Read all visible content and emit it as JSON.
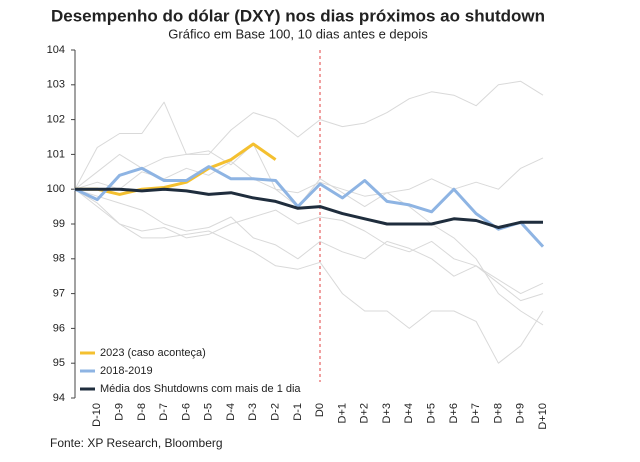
{
  "chart_data": {
    "type": "line",
    "title": "Desempenho do dólar (DXY) nos dias próximos ao shutdown",
    "subtitle": "Gráfico em Base 100, 10 dias antes e depois",
    "source": "Fonte: XP Research, Bloomberg",
    "categories": [
      null,
      "D-10",
      "D-9",
      "D-8",
      "D-7",
      "D-6",
      "D-5",
      "D-4",
      "D-3",
      "D-2",
      "D-1",
      "D0",
      "D+1",
      "D+2",
      "D+3",
      "D+4",
      "D+5",
      "D+6",
      "D+7",
      "D+8",
      "D+9",
      "D+10"
    ],
    "ylim": [
      94,
      104
    ],
    "yticks": [
      94,
      95,
      96,
      97,
      98,
      99,
      100,
      101,
      102,
      103,
      104
    ],
    "series": [
      {
        "color": "#d9d9d9",
        "values": [
          100,
          101.2,
          101.6,
          101.6,
          102.5,
          101.0,
          101.0,
          101.7,
          102.2,
          102.0,
          101.5,
          102.0,
          101.8,
          101.9,
          102.2,
          102.6,
          102.8,
          102.7,
          102.4,
          103.0,
          103.1,
          102.7
        ]
      },
      {
        "color": "#d9d9d9",
        "values": [
          100,
          100.5,
          101.0,
          100.6,
          100.9,
          101.0,
          101.1,
          100.7,
          101.3,
          100.0,
          99.5,
          100.3,
          99.9,
          99.5,
          99.9,
          99.5,
          99.0,
          98.6,
          98.0,
          97.0,
          96.5,
          96.1
        ]
      },
      {
        "color": "#d9d9d9",
        "values": [
          100,
          99.5,
          99.0,
          98.6,
          98.6,
          98.7,
          98.8,
          98.5,
          98.2,
          97.8,
          97.7,
          97.9,
          97.0,
          96.5,
          96.5,
          96.0,
          96.5,
          96.5,
          96.2,
          95.0,
          95.5,
          96.5
        ]
      },
      {
        "color": "#d9d9d9",
        "values": [
          100,
          99.8,
          99.6,
          99.4,
          99.0,
          98.8,
          98.9,
          99.2,
          98.6,
          98.4,
          98.0,
          98.5,
          98.2,
          98.0,
          98.5,
          98.3,
          98.0,
          97.5,
          97.8,
          97.4,
          97.0,
          97.3
        ]
      },
      {
        "color": "#d9d9d9",
        "values": [
          100,
          100.2,
          100.0,
          100.5,
          100.3,
          100.6,
          100.4,
          100.8,
          100.3,
          100.0,
          99.9,
          100.2,
          100.0,
          99.8,
          99.9,
          100.0,
          100.3,
          100.0,
          100.2,
          100.0,
          100.6,
          100.9
        ]
      },
      {
        "color": "#d9d9d9",
        "values": [
          100,
          99.6,
          99.0,
          98.8,
          98.9,
          98.6,
          98.7,
          99.0,
          99.2,
          99.4,
          99.0,
          99.2,
          99.1,
          98.8,
          98.4,
          98.2,
          98.5,
          98.0,
          97.8,
          97.3,
          96.8,
          97.0
        ]
      },
      {
        "name": "2023 (caso aconteça)",
        "color": "#f4c030",
        "values": [
          100,
          100.0,
          99.85,
          100.0,
          100.05,
          100.2,
          100.6,
          100.85,
          101.3,
          100.85,
          null,
          null,
          null,
          null,
          null,
          null,
          null,
          null,
          null,
          null,
          null,
          null
        ]
      },
      {
        "name": "2018-2019",
        "color": "#8eb4e3",
        "values": [
          100,
          99.7,
          100.4,
          100.6,
          100.25,
          100.25,
          100.65,
          100.3,
          100.3,
          100.25,
          99.5,
          100.15,
          99.75,
          100.25,
          99.65,
          99.55,
          99.35,
          100.0,
          99.3,
          98.85,
          99.05,
          98.35
        ]
      },
      {
        "name": "Média dos Shutdowns com mais de 1 dia",
        "color": "#1f2d3d",
        "values": [
          100,
          100.0,
          100.0,
          99.95,
          100.0,
          99.95,
          99.85,
          99.9,
          99.75,
          99.65,
          99.45,
          99.5,
          99.3,
          99.15,
          99.0,
          99.0,
          99.0,
          99.15,
          99.1,
          98.9,
          99.05,
          99.05
        ]
      }
    ]
  }
}
